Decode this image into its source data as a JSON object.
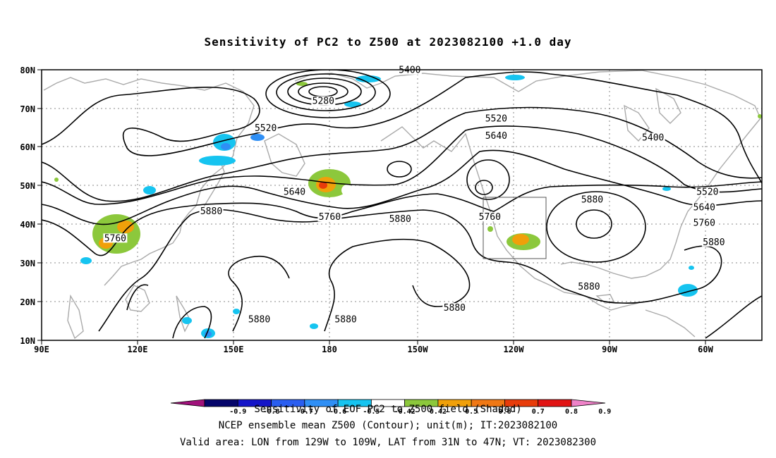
{
  "title": "Sensitivity of PC2 to Z500 at 2023082100 +1.0 day",
  "lat_labels": [
    "80N",
    "70N",
    "60N",
    "50N",
    "40N",
    "30N",
    "20N",
    "10N"
  ],
  "lon_labels": [
    "90E",
    "120E",
    "150E",
    "180",
    "150W",
    "120W",
    "90W",
    "60W"
  ],
  "contour_labels": [
    {
      "text": "5400",
      "lon": -155,
      "lat": 79.5
    },
    {
      "text": "5280",
      "lon": 178,
      "lat": 71.5
    },
    {
      "text": "5520",
      "lon": 160,
      "lat": 64.5
    },
    {
      "text": "5520",
      "lon": -128,
      "lat": 67
    },
    {
      "text": "5640",
      "lon": -128,
      "lat": 62.5
    },
    {
      "text": "5400",
      "lon": -79,
      "lat": 62
    },
    {
      "text": "5640",
      "lon": 169,
      "lat": 48
    },
    {
      "text": "5520",
      "lon": -62,
      "lat": 48
    },
    {
      "text": "5640",
      "lon": -63,
      "lat": 44
    },
    {
      "text": "5880",
      "lon": -98,
      "lat": 46
    },
    {
      "text": "5760",
      "lon": -63,
      "lat": 40
    },
    {
      "text": "5880",
      "lon": 143,
      "lat": 43
    },
    {
      "text": "5760",
      "lon": 180,
      "lat": 41.5
    },
    {
      "text": "5880",
      "lon": -158,
      "lat": 41
    },
    {
      "text": "5760",
      "lon": -130,
      "lat": 41.5
    },
    {
      "text": "5760",
      "lon": 113,
      "lat": 36
    },
    {
      "text": "5880",
      "lon": -60,
      "lat": 35
    },
    {
      "text": "5880",
      "lon": -99,
      "lat": 23.5
    },
    {
      "text": "5880",
      "lon": -141,
      "lat": 18
    },
    {
      "text": "5880",
      "lon": 158,
      "lat": 15
    },
    {
      "text": "5880",
      "lon": -175,
      "lat": 15
    }
  ],
  "valid_area_box": {
    "lon_min": -129,
    "lon_max": -109,
    "lat_min": 31,
    "lat_max": 47
  },
  "colorbar": {
    "labels": [
      "-0.9",
      "-0.8",
      "-0.7",
      "-0.6",
      "-0.5",
      "-0.42",
      "0.42",
      "0.5",
      "0.6",
      "0.7",
      "0.8",
      "0.9"
    ],
    "colors": [
      "#a0127b",
      "#05056b",
      "#1414c8",
      "#2a5ef0",
      "#2f8ff5",
      "#16c4f0",
      "#ffffff",
      "#8cc83c",
      "#f0a00a",
      "#f07814",
      "#e83c0a",
      "#e11414",
      "#ee82c8"
    ]
  },
  "footer": {
    "line1": "Sensitivity of EOF PC2 to Z500 field (Shaded)",
    "line2": "NCEP ensemble mean Z500 (Contour); unit(m); IT:2023082100",
    "line3": "Valid area: LON from 129W to 109W, LAT from 31N to 47N; VT: 2023082300"
  }
}
